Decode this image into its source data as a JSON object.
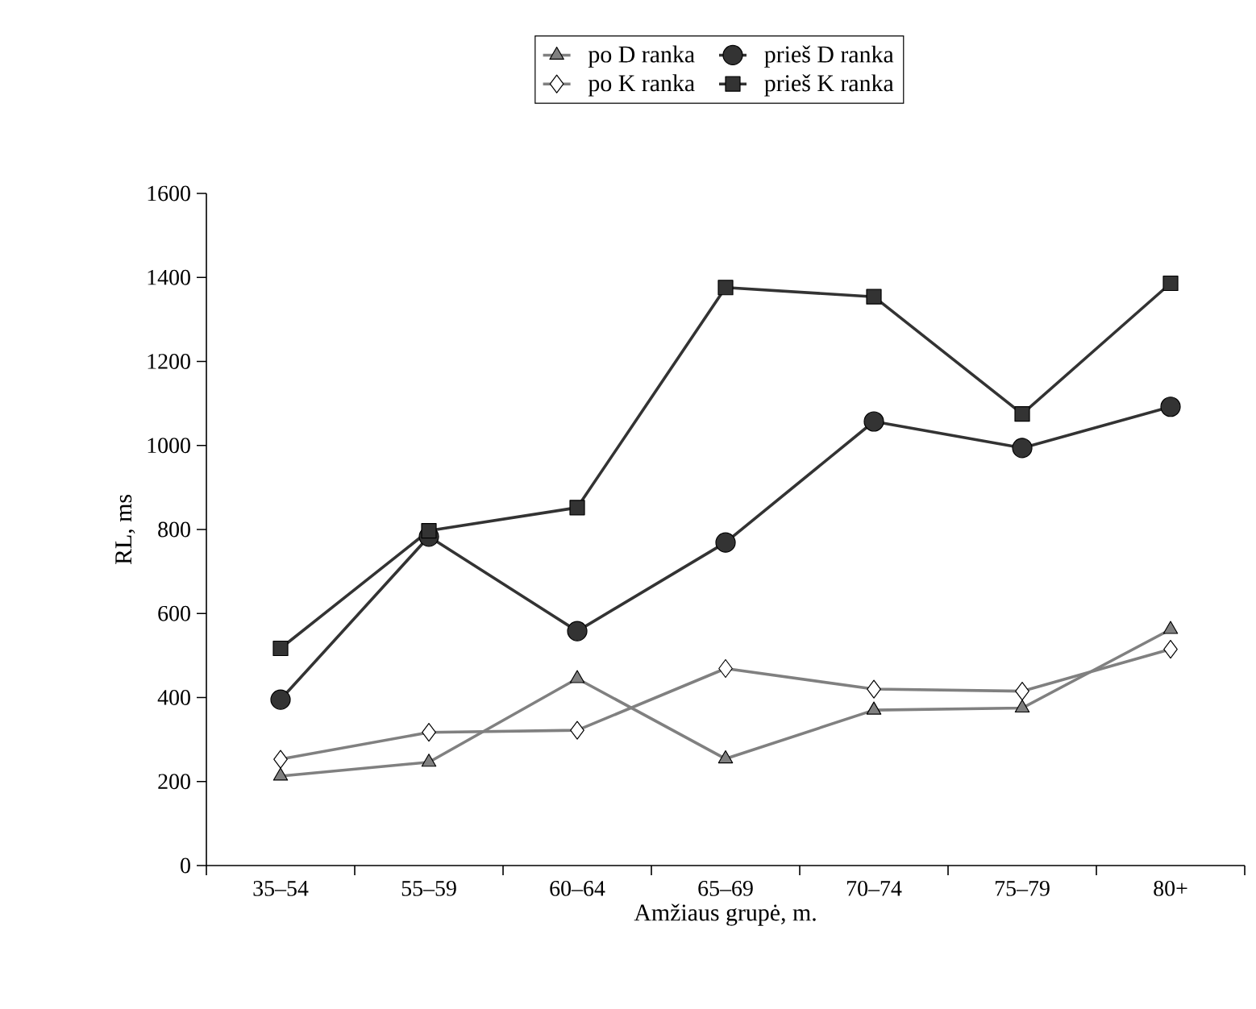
{
  "chart_data": {
    "type": "line",
    "xlabel": "Amžiaus grupė, m.",
    "ylabel": "RL, ms",
    "categories": [
      "35–54",
      "55–59",
      "60–64",
      "65–69",
      "70–74",
      "75–79",
      "80+"
    ],
    "ylim": [
      0,
      1600
    ],
    "yticks": [
      0,
      200,
      400,
      600,
      800,
      1000,
      1200,
      1400,
      1600
    ],
    "legend": "top",
    "grid": false,
    "line_style": "solid",
    "series": [
      {
        "name": "po D ranka",
        "color": "#808080",
        "marker": "triangle",
        "values": [
          213,
          246,
          445,
          254,
          370,
          375,
          562
        ]
      },
      {
        "name": "prieš D ranka",
        "color": "#333333",
        "marker": "circle",
        "values": [
          395,
          783,
          558,
          769,
          1057,
          994,
          1092
        ]
      },
      {
        "name": "po K ranka",
        "color": "#808080",
        "marker": "diamond",
        "values": [
          253,
          317,
          322,
          469,
          420,
          415,
          515
        ]
      },
      {
        "name": "prieš K ranka",
        "color": "#333333",
        "marker": "square",
        "values": [
          517,
          797,
          852,
          1376,
          1354,
          1075,
          1386
        ]
      }
    ]
  }
}
